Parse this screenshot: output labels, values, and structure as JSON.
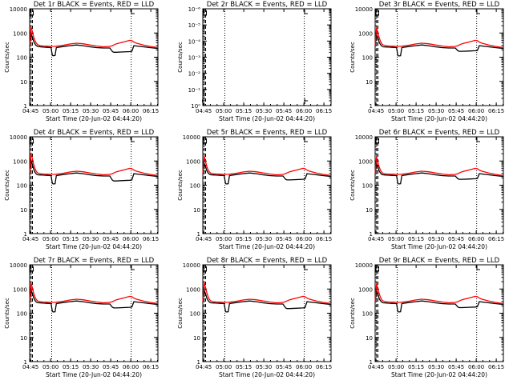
{
  "chart_data": {
    "type": "line",
    "layout": "3x3 grid",
    "xlabel": "Start Time (20-Jun-02 04:44:20)",
    "ylabel": "Counts/sec",
    "x_tick_labels": [
      "04:45",
      "05:00",
      "05:15",
      "05:30",
      "05:45",
      "06:00",
      "06:15"
    ],
    "x_tick_minutes": [
      0.67,
      15.67,
      30.67,
      45.67,
      60.67,
      75.67,
      90.67
    ],
    "xlim_minutes": [
      0.0,
      96.0
    ],
    "y_scale": "log",
    "ylim": [
      1,
      10000
    ],
    "y_tick_labels": [
      "1",
      "10",
      "100",
      "1000",
      "10000"
    ],
    "y_tick_values": [
      1,
      10,
      100,
      1000,
      10000
    ],
    "dotted_vertical_lines_minutes": [
      16.5,
      76.0
    ],
    "dashed_vertical_lines_minutes": [
      1.1,
      2.1
    ],
    "colors": {
      "events": "#000000",
      "lld": "#ff0000"
    },
    "x_minutes": [
      0,
      1,
      2,
      3,
      4,
      5,
      6,
      8,
      10,
      13,
      16,
      17,
      17.5,
      19,
      20,
      21,
      25,
      30,
      35,
      40,
      45,
      50,
      55,
      60,
      62,
      63,
      65,
      70,
      75,
      76.5,
      78,
      80,
      85,
      90,
      96
    ],
    "panels": [
      {
        "title": "Det 1r BLACK = Events, RED = LLD",
        "events": [
          300,
          900,
          700,
          450,
          350,
          300,
          280,
          270,
          260,
          255,
          250,
          120,
          115,
          118,
          250,
          255,
          275,
          300,
          320,
          300,
          270,
          250,
          240,
          240,
          170,
          160,
          160,
          165,
          170,
          175,
          300,
          290,
          270,
          250,
          230
        ],
        "lld": [
          300,
          1800,
          1200,
          700,
          480,
          380,
          330,
          300,
          290,
          285,
          280,
          280,
          280,
          280,
          285,
          290,
          310,
          350,
          380,
          360,
          320,
          290,
          270,
          280,
          300,
          320,
          360,
          420,
          500,
          480,
          420,
          380,
          320,
          280,
          250
        ]
      },
      {
        "title": "Det 2r BLACK = Events, RED = LLD",
        "special": "empty",
        "y_tick_labels": [
          "10⁰",
          "10⁻¹",
          "10⁻²",
          "10⁻³",
          "10⁻⁴",
          "10⁻⁵",
          "10⁻⁶"
        ],
        "events": [],
        "lld": []
      },
      {
        "title": "Det 3r BLACK = Events, RED = LLD",
        "events": [
          300,
          850,
          650,
          420,
          330,
          290,
          270,
          265,
          260,
          255,
          250,
          120,
          112,
          115,
          250,
          255,
          275,
          300,
          320,
          300,
          270,
          250,
          240,
          240,
          185,
          175,
          175,
          180,
          185,
          190,
          300,
          290,
          270,
          250,
          230
        ],
        "lld": [
          300,
          1700,
          1100,
          650,
          450,
          360,
          320,
          300,
          290,
          285,
          280,
          280,
          280,
          280,
          285,
          290,
          310,
          350,
          380,
          360,
          320,
          290,
          270,
          280,
          300,
          320,
          360,
          420,
          500,
          480,
          420,
          380,
          320,
          280,
          250
        ]
      },
      {
        "title": "Det 4r BLACK = Events, RED = LLD",
        "events": [
          300,
          1000,
          750,
          460,
          340,
          290,
          270,
          265,
          260,
          255,
          250,
          120,
          112,
          115,
          250,
          255,
          275,
          300,
          320,
          300,
          270,
          250,
          240,
          240,
          160,
          150,
          150,
          155,
          160,
          165,
          300,
          290,
          270,
          250,
          230
        ],
        "lld": [
          300,
          2200,
          1300,
          750,
          480,
          370,
          320,
          300,
          290,
          285,
          280,
          280,
          280,
          280,
          285,
          290,
          310,
          350,
          380,
          360,
          320,
          290,
          270,
          280,
          300,
          320,
          360,
          420,
          500,
          480,
          420,
          380,
          320,
          280,
          250
        ]
      },
      {
        "title": "Det 5r BLACK = Events, RED = LLD",
        "events": [
          300,
          800,
          600,
          400,
          320,
          285,
          270,
          265,
          260,
          255,
          250,
          120,
          112,
          115,
          250,
          255,
          275,
          300,
          320,
          300,
          270,
          250,
          240,
          240,
          175,
          165,
          165,
          170,
          175,
          180,
          300,
          290,
          270,
          250,
          230
        ],
        "lld": [
          300,
          1600,
          1000,
          600,
          420,
          350,
          310,
          295,
          290,
          285,
          280,
          280,
          280,
          280,
          285,
          290,
          310,
          350,
          380,
          360,
          320,
          290,
          270,
          280,
          300,
          320,
          360,
          420,
          500,
          480,
          420,
          380,
          320,
          280,
          250
        ]
      },
      {
        "title": "Det 6r BLACK = Events, RED = LLD",
        "events": [
          300,
          780,
          580,
          390,
          315,
          280,
          268,
          262,
          258,
          254,
          250,
          120,
          112,
          115,
          250,
          255,
          275,
          300,
          320,
          300,
          270,
          250,
          240,
          240,
          185,
          175,
          175,
          180,
          185,
          190,
          300,
          290,
          270,
          250,
          230
        ],
        "lld": [
          300,
          1500,
          950,
          580,
          410,
          340,
          305,
          292,
          288,
          284,
          280,
          280,
          280,
          280,
          285,
          290,
          310,
          350,
          380,
          360,
          320,
          290,
          270,
          280,
          300,
          320,
          360,
          420,
          500,
          480,
          420,
          380,
          320,
          280,
          250
        ]
      },
      {
        "title": "Det 7r BLACK = Events, RED = LLD",
        "events": [
          300,
          900,
          680,
          430,
          335,
          290,
          272,
          266,
          260,
          255,
          250,
          120,
          112,
          115,
          250,
          255,
          275,
          300,
          320,
          300,
          270,
          250,
          240,
          240,
          175,
          165,
          165,
          170,
          175,
          180,
          300,
          290,
          270,
          250,
          230
        ],
        "lld": [
          300,
          1800,
          1150,
          680,
          460,
          365,
          320,
          300,
          290,
          285,
          280,
          280,
          280,
          280,
          285,
          290,
          310,
          350,
          380,
          360,
          320,
          290,
          270,
          280,
          300,
          320,
          360,
          420,
          500,
          480,
          420,
          380,
          320,
          280,
          250
        ]
      },
      {
        "title": "Det 8r BLACK = Events, RED = LLD",
        "events": [
          300,
          880,
          660,
          420,
          330,
          288,
          270,
          265,
          260,
          255,
          250,
          120,
          112,
          115,
          250,
          255,
          275,
          300,
          320,
          300,
          270,
          250,
          240,
          240,
          165,
          155,
          155,
          160,
          165,
          170,
          300,
          290,
          270,
          250,
          230
        ],
        "lld": [
          300,
          1900,
          1200,
          700,
          470,
          370,
          320,
          300,
          290,
          285,
          280,
          280,
          280,
          280,
          285,
          290,
          310,
          350,
          380,
          360,
          320,
          290,
          270,
          280,
          300,
          320,
          360,
          420,
          500,
          480,
          420,
          380,
          320,
          280,
          250
        ]
      },
      {
        "title": "Det 9r BLACK = Events, RED = LLD",
        "events": [
          300,
          860,
          640,
          410,
          325,
          285,
          270,
          264,
          259,
          254,
          250,
          120,
          112,
          115,
          250,
          255,
          275,
          300,
          320,
          300,
          270,
          250,
          240,
          240,
          180,
          170,
          170,
          175,
          180,
          185,
          300,
          290,
          270,
          250,
          230
        ],
        "lld": [
          300,
          1700,
          1100,
          650,
          450,
          360,
          318,
          300,
          290,
          285,
          280,
          280,
          280,
          280,
          285,
          290,
          310,
          350,
          380,
          360,
          320,
          290,
          270,
          280,
          300,
          320,
          360,
          420,
          500,
          480,
          420,
          380,
          320,
          280,
          250
        ]
      }
    ]
  }
}
